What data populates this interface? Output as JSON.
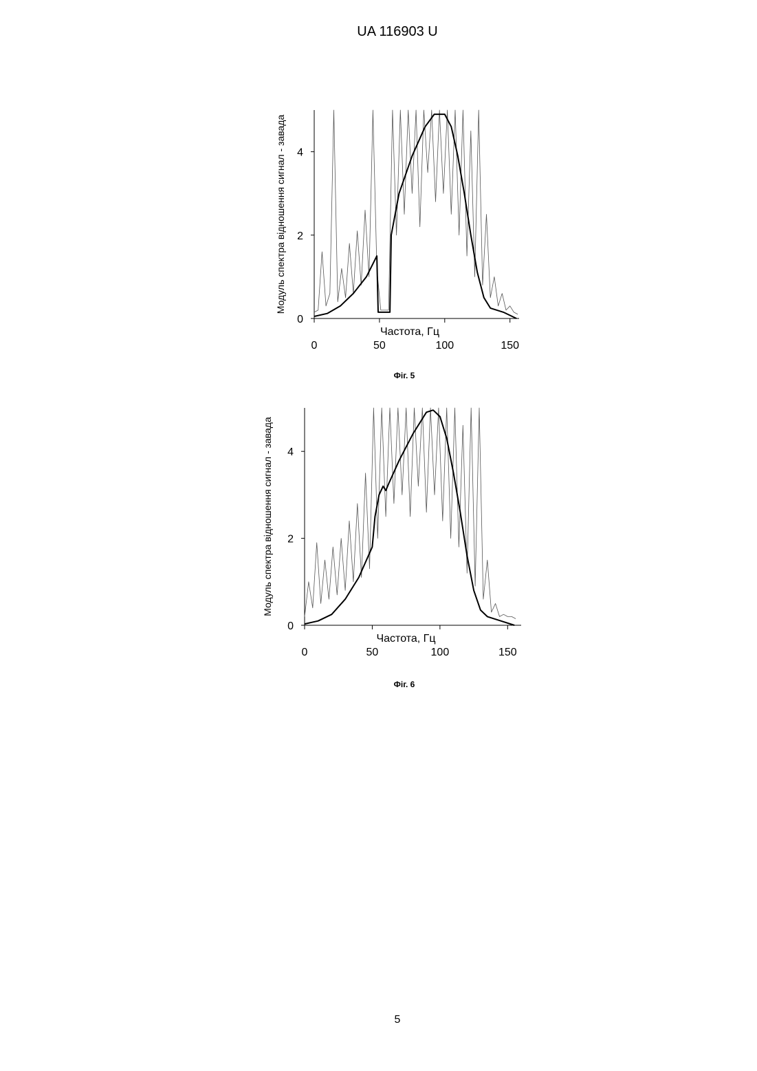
{
  "header": {
    "title": "UA   116903   U"
  },
  "footer": {
    "page_number": "5"
  },
  "chart_data": [
    {
      "type": "line",
      "caption": "Фіг. 5",
      "xlabel": "Частота, Гц",
      "ylabel": "Модуль спектра відношення сигнал - завада",
      "xlim": [
        0,
        157
      ],
      "ylim": [
        0,
        5
      ],
      "xticks": [
        0,
        50,
        100,
        150
      ],
      "yticks": [
        0,
        2,
        4
      ],
      "series": [
        {
          "color": "#555555",
          "width": 0.8,
          "x": [
            0,
            3,
            6,
            9,
            12,
            15,
            18,
            21,
            24,
            27,
            30,
            33,
            36,
            39,
            42,
            45,
            48,
            51,
            54,
            57,
            60,
            63,
            66,
            69,
            72,
            75,
            78,
            81,
            84,
            87,
            90,
            93,
            96,
            99,
            102,
            105,
            108,
            111,
            114,
            117,
            120,
            123,
            126,
            129,
            132,
            135,
            138,
            141,
            144,
            147,
            150,
            153,
            156
          ],
          "values": [
            0.15,
            0.2,
            1.6,
            0.3,
            0.6,
            5,
            0.4,
            1.2,
            0.5,
            1.8,
            0.6,
            2.1,
            0.8,
            2.6,
            1.0,
            5,
            1.2,
            0.2,
            0.2,
            0.2,
            5,
            2.0,
            5,
            2.5,
            5,
            3.0,
            5,
            2.2,
            5,
            3.5,
            5,
            2.8,
            5,
            3.0,
            5,
            2.5,
            5,
            2.0,
            5,
            1.5,
            4.5,
            1.0,
            5,
            0.8,
            2.5,
            0.5,
            1.0,
            0.3,
            0.6,
            0.2,
            0.3,
            0.15,
            0.1
          ]
        },
        {
          "color": "#000000",
          "width": 2,
          "x": [
            0,
            10,
            20,
            30,
            40,
            48,
            49,
            58,
            59,
            65,
            75,
            85,
            92,
            100,
            105,
            110,
            115,
            120,
            125,
            130,
            135,
            145,
            155
          ],
          "values": [
            0.05,
            0.12,
            0.3,
            0.6,
            1.0,
            1.5,
            0.15,
            0.15,
            2.0,
            3.0,
            3.9,
            4.6,
            4.9,
            4.9,
            4.6,
            3.9,
            3.0,
            2.0,
            1.1,
            0.5,
            0.25,
            0.15,
            0.0
          ]
        }
      ]
    },
    {
      "type": "line",
      "caption": "Фіг. 6",
      "xlabel": "Частота, Гц",
      "ylabel": "Модуль спектра відношення сигнал - завада",
      "xlim": [
        0,
        160
      ],
      "ylim": [
        0,
        5
      ],
      "xticks": [
        0,
        50,
        100,
        150
      ],
      "yticks": [
        0,
        2,
        4
      ],
      "series": [
        {
          "color": "#555555",
          "width": 0.8,
          "x": [
            0,
            3,
            6,
            9,
            12,
            15,
            18,
            21,
            24,
            27,
            30,
            33,
            36,
            39,
            42,
            45,
            48,
            51,
            54,
            57,
            60,
            63,
            66,
            69,
            72,
            75,
            78,
            81,
            84,
            87,
            90,
            93,
            96,
            99,
            102,
            105,
            108,
            111,
            114,
            117,
            120,
            123,
            126,
            129,
            132,
            135,
            138,
            141,
            144,
            147,
            150,
            153,
            156
          ],
          "values": [
            0.2,
            1.0,
            0.4,
            1.9,
            0.5,
            1.5,
            0.6,
            1.8,
            0.7,
            2.0,
            0.8,
            2.4,
            1.0,
            2.8,
            1.1,
            3.5,
            1.3,
            5,
            2.0,
            5,
            2.5,
            5,
            2.8,
            5,
            3.0,
            5,
            2.5,
            5,
            3.2,
            5,
            2.6,
            5,
            3.0,
            5,
            2.4,
            5,
            2.0,
            5,
            1.8,
            4.6,
            1.2,
            5,
            0.9,
            5,
            0.6,
            1.5,
            0.3,
            0.5,
            0.2,
            0.25,
            0.2,
            0.2,
            0.15
          ]
        },
        {
          "color": "#000000",
          "width": 2,
          "x": [
            0,
            10,
            20,
            30,
            40,
            50,
            52,
            55,
            58,
            60,
            62,
            70,
            80,
            90,
            95,
            100,
            105,
            110,
            115,
            120,
            125,
            130,
            135,
            145,
            155
          ],
          "values": [
            0.03,
            0.1,
            0.25,
            0.6,
            1.1,
            1.8,
            2.5,
            3.0,
            3.2,
            3.1,
            3.25,
            3.8,
            4.4,
            4.9,
            4.95,
            4.8,
            4.3,
            3.5,
            2.6,
            1.6,
            0.8,
            0.35,
            0.2,
            0.1,
            0.0
          ]
        }
      ]
    }
  ]
}
